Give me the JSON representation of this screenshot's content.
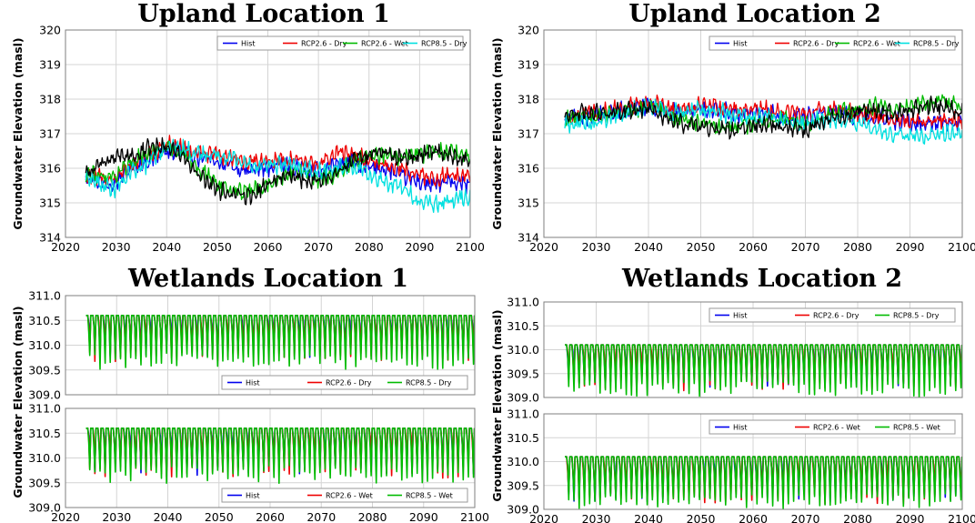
{
  "colors": {
    "Hist": "#0000ee",
    "RCP2.6 - Dry": "#ee0000",
    "RCP2.6 - Wet": "#00bb00",
    "RCP8.5 - Dry": "#00e0e0",
    "RCP8.5 - Wet": "#00bb00",
    "extra_series": "#000000"
  },
  "chart_data": [
    {
      "id": "upland1",
      "type": "line",
      "title": "Upland Location 1",
      "ylabel": "Groundwater Elevation (masl)",
      "xlim": [
        2020,
        2100
      ],
      "ylim": [
        314,
        320
      ],
      "xticks": [
        "2020",
        "2030",
        "2040",
        "2050",
        "2060",
        "2070",
        "2080",
        "2090",
        "2100"
      ],
      "yticks": [
        "314",
        "315",
        "316",
        "317",
        "318",
        "319",
        "320"
      ],
      "legend": {
        "position": "top-right",
        "entries": [
          "Hist",
          "RCP2.6 - Dry",
          "RCP2.6 - Wet",
          "RCP8.5 - Dry"
        ]
      },
      "x": [
        2024,
        2027,
        2030,
        2033,
        2036,
        2040,
        2043,
        2046,
        2050,
        2053,
        2056,
        2060,
        2063,
        2066,
        2070,
        2073,
        2076,
        2080,
        2083,
        2086,
        2090,
        2093,
        2096,
        2100
      ],
      "series": [
        {
          "name": "Hist",
          "color": "#0000ee",
          "values": [
            315.8,
            315.6,
            315.6,
            316.0,
            316.2,
            316.5,
            316.5,
            316.3,
            316.2,
            316.0,
            315.9,
            316.0,
            316.1,
            316.0,
            315.9,
            316.1,
            316.2,
            316.0,
            316.0,
            315.8,
            315.6,
            315.5,
            315.6,
            315.5
          ]
        },
        {
          "name": "RCP2.6 - Dry",
          "color": "#ee0000",
          "values": [
            315.8,
            315.7,
            315.7,
            316.1,
            316.3,
            316.7,
            316.6,
            316.4,
            316.4,
            316.3,
            316.2,
            316.2,
            316.3,
            316.2,
            316.1,
            316.4,
            316.5,
            316.2,
            316.1,
            316.0,
            315.8,
            315.7,
            315.8,
            315.8
          ]
        },
        {
          "name": "RCP2.6 - Wet",
          "color": "#00bb00",
          "values": [
            315.8,
            315.8,
            315.8,
            316.2,
            316.4,
            316.6,
            316.5,
            316.0,
            315.6,
            315.3,
            315.3,
            315.6,
            315.8,
            315.9,
            315.7,
            315.8,
            316.1,
            316.3,
            316.4,
            316.3,
            316.4,
            316.5,
            316.5,
            316.3
          ]
        },
        {
          "name": "RCP8.5 - Dry",
          "color": "#00e0e0",
          "values": [
            315.8,
            315.5,
            315.4,
            315.9,
            316.1,
            316.6,
            316.6,
            316.4,
            316.4,
            316.3,
            316.1,
            316.1,
            316.1,
            316.0,
            315.9,
            316.0,
            316.1,
            315.8,
            315.6,
            315.5,
            315.0,
            315.0,
            315.1,
            315.2
          ]
        },
        {
          "color": "#000000",
          "values": [
            315.9,
            316.1,
            316.3,
            316.4,
            316.6,
            316.7,
            316.4,
            315.8,
            315.4,
            315.2,
            315.2,
            315.5,
            315.8,
            315.7,
            315.6,
            315.8,
            316.2,
            316.4,
            316.5,
            316.3,
            316.4,
            316.5,
            316.4,
            316.2
          ]
        }
      ]
    },
    {
      "id": "upland2",
      "type": "line",
      "title": "Upland Location 2",
      "ylabel": "Groundwater Elevation (masl)",
      "xlim": [
        2020,
        2100
      ],
      "ylim": [
        314,
        320
      ],
      "xticks": [
        "2020",
        "2030",
        "2040",
        "2050",
        "2060",
        "2070",
        "2080",
        "2090",
        "2100"
      ],
      "yticks": [
        "314",
        "315",
        "316",
        "317",
        "318",
        "319",
        "320"
      ],
      "legend": {
        "position": "top-right",
        "entries": [
          "Hist",
          "RCP2.6 - Dry",
          "RCP2.6 - Wet",
          "RCP8.5 - Dry"
        ]
      },
      "x": [
        2024,
        2027,
        2030,
        2033,
        2036,
        2040,
        2043,
        2046,
        2050,
        2053,
        2056,
        2060,
        2063,
        2066,
        2070,
        2073,
        2076,
        2080,
        2083,
        2086,
        2090,
        2093,
        2096,
        2100
      ],
      "series": [
        {
          "name": "Hist",
          "color": "#0000ee",
          "values": [
            317.4,
            317.5,
            317.5,
            317.6,
            317.7,
            317.8,
            317.7,
            317.6,
            317.7,
            317.7,
            317.6,
            317.6,
            317.6,
            317.5,
            317.5,
            317.6,
            317.6,
            317.5,
            317.5,
            317.4,
            317.3,
            317.3,
            317.3,
            317.3
          ]
        },
        {
          "name": "RCP2.6 - Dry",
          "color": "#ee0000",
          "values": [
            317.4,
            317.5,
            317.6,
            317.7,
            317.8,
            317.9,
            317.8,
            317.7,
            317.8,
            317.8,
            317.7,
            317.7,
            317.7,
            317.6,
            317.6,
            317.7,
            317.7,
            317.6,
            317.5,
            317.5,
            317.3,
            317.3,
            317.4,
            317.4
          ]
        },
        {
          "name": "RCP2.6 - Wet",
          "color": "#00bb00",
          "values": [
            317.4,
            317.5,
            317.5,
            317.6,
            317.7,
            317.8,
            317.6,
            317.4,
            317.3,
            317.2,
            317.2,
            317.3,
            317.4,
            317.4,
            317.3,
            317.4,
            317.6,
            317.7,
            317.8,
            317.7,
            317.8,
            317.9,
            317.9,
            317.8
          ]
        },
        {
          "name": "RCP8.5 - Dry",
          "color": "#00e0e0",
          "values": [
            317.3,
            317.3,
            317.3,
            317.5,
            317.6,
            317.8,
            317.7,
            317.6,
            317.7,
            317.7,
            317.5,
            317.5,
            317.5,
            317.4,
            317.3,
            317.4,
            317.4,
            317.3,
            317.1,
            317.0,
            316.9,
            316.9,
            317.0,
            317.0
          ]
        },
        {
          "color": "#000000",
          "values": [
            317.5,
            317.6,
            317.6,
            317.6,
            317.7,
            317.7,
            317.5,
            317.3,
            317.2,
            317.1,
            317.1,
            317.2,
            317.3,
            317.2,
            317.1,
            317.3,
            317.5,
            317.6,
            317.7,
            317.6,
            317.7,
            317.8,
            317.8,
            317.6
          ]
        }
      ]
    },
    {
      "id": "wet1dry",
      "type": "line",
      "title": "Wetlands Location 1",
      "ylabel": "Groundwater Elevation (masl)",
      "xlim": [
        2020,
        2100
      ],
      "ylim": [
        309.0,
        311.0
      ],
      "xticks": [],
      "yticks": [
        "309.0",
        "309.5",
        "310.0",
        "310.5",
        "311.0"
      ],
      "legend": {
        "position": "bottom-right",
        "entries": [
          "Hist",
          "RCP2.6 - Dry",
          "RCP8.5 - Dry"
        ]
      },
      "x_start": 2024,
      "x_end": 2100,
      "cycle_years": 1,
      "series": [
        {
          "name": "Hist",
          "color": "#0000ee",
          "high": 310.6,
          "low": 310.05
        },
        {
          "name": "RCP2.6 - Dry",
          "color": "#ee0000",
          "high": 310.6,
          "low": 309.95
        },
        {
          "name": "RCP8.5 - Dry",
          "color": "#00bb00",
          "high": 310.6,
          "low": 309.8
        }
      ]
    },
    {
      "id": "wet1wet",
      "type": "line",
      "xlim": [
        2020,
        2100
      ],
      "ylim": [
        309.0,
        311.0
      ],
      "xticks": [
        "2020",
        "2030",
        "2040",
        "2050",
        "2060",
        "2070",
        "2080",
        "2090",
        "2100"
      ],
      "yticks": [
        "309.0",
        "309.5",
        "310.0",
        "310.5",
        "311.0"
      ],
      "legend": {
        "position": "bottom-right",
        "entries": [
          "Hist",
          "RCP2.6 - Wet",
          "RCP8.5 - Wet"
        ]
      },
      "x_start": 2024,
      "x_end": 2100,
      "cycle_years": 1,
      "series": [
        {
          "name": "Hist",
          "color": "#0000ee",
          "high": 310.6,
          "low": 309.95
        },
        {
          "name": "RCP2.6 - Wet",
          "color": "#ee0000",
          "high": 310.6,
          "low": 309.9
        },
        {
          "name": "RCP8.5 - Wet",
          "color": "#00bb00",
          "high": 310.6,
          "low": 309.8
        }
      ]
    },
    {
      "id": "wet2dry",
      "type": "line",
      "title": "Wetlands Location 2",
      "ylabel": "Groundwater Elevation (masl)",
      "xlim": [
        2020,
        2100
      ],
      "ylim": [
        309.0,
        311.0
      ],
      "xticks": [],
      "yticks": [
        "309.0",
        "309.5",
        "310.0",
        "310.5",
        "311.0"
      ],
      "legend": {
        "position": "top-right",
        "entries": [
          "Hist",
          "RCP2.6 - Dry",
          "RCP8.5 - Dry"
        ]
      },
      "x_start": 2024,
      "x_end": 2100,
      "cycle_years": 1,
      "series": [
        {
          "name": "Hist",
          "color": "#0000ee",
          "high": 310.1,
          "low": 309.5
        },
        {
          "name": "RCP2.6 - Dry",
          "color": "#ee0000",
          "high": 310.1,
          "low": 309.45
        },
        {
          "name": "RCP8.5 - Dry",
          "color": "#00bb00",
          "high": 310.1,
          "low": 309.3
        }
      ]
    },
    {
      "id": "wet2wet",
      "type": "line",
      "xlim": [
        2020,
        2100
      ],
      "ylim": [
        309.0,
        311.0
      ],
      "xticks": [
        "2020",
        "2030",
        "2040",
        "2050",
        "2060",
        "2070",
        "2080",
        "2090",
        "2100"
      ],
      "yticks": [
        "309.0",
        "309.5",
        "310.0",
        "310.5",
        "311.0"
      ],
      "legend": {
        "position": "top-right",
        "entries": [
          "Hist",
          "RCP2.6 - Wet",
          "RCP8.5 - Wet"
        ]
      },
      "x_start": 2024,
      "x_end": 2100,
      "cycle_years": 1,
      "series": [
        {
          "name": "Hist",
          "color": "#0000ee",
          "high": 310.1,
          "low": 309.45
        },
        {
          "name": "RCP2.6 - Wet",
          "color": "#ee0000",
          "high": 310.1,
          "low": 309.4
        },
        {
          "name": "RCP8.5 - Wet",
          "color": "#00bb00",
          "high": 310.1,
          "low": 309.3
        }
      ]
    }
  ]
}
